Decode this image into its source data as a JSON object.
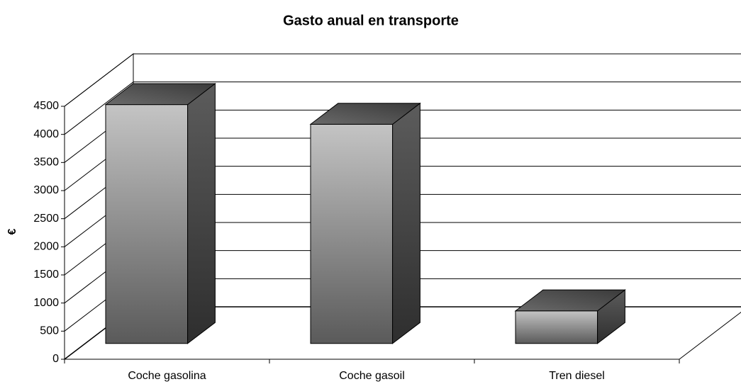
{
  "chart_data": {
    "type": "bar3d",
    "title": "Gasto anual en transporte",
    "y_label": "€",
    "categories": [
      "Coche gasolina",
      "Coche gasoil",
      "Tren diesel"
    ],
    "values": [
      4250,
      3900,
      580
    ],
    "ylim": [
      0,
      4500
    ],
    "yticks": [
      0,
      500,
      1000,
      1500,
      2000,
      2500,
      3000,
      3500,
      4000,
      4500
    ],
    "grid": true
  }
}
